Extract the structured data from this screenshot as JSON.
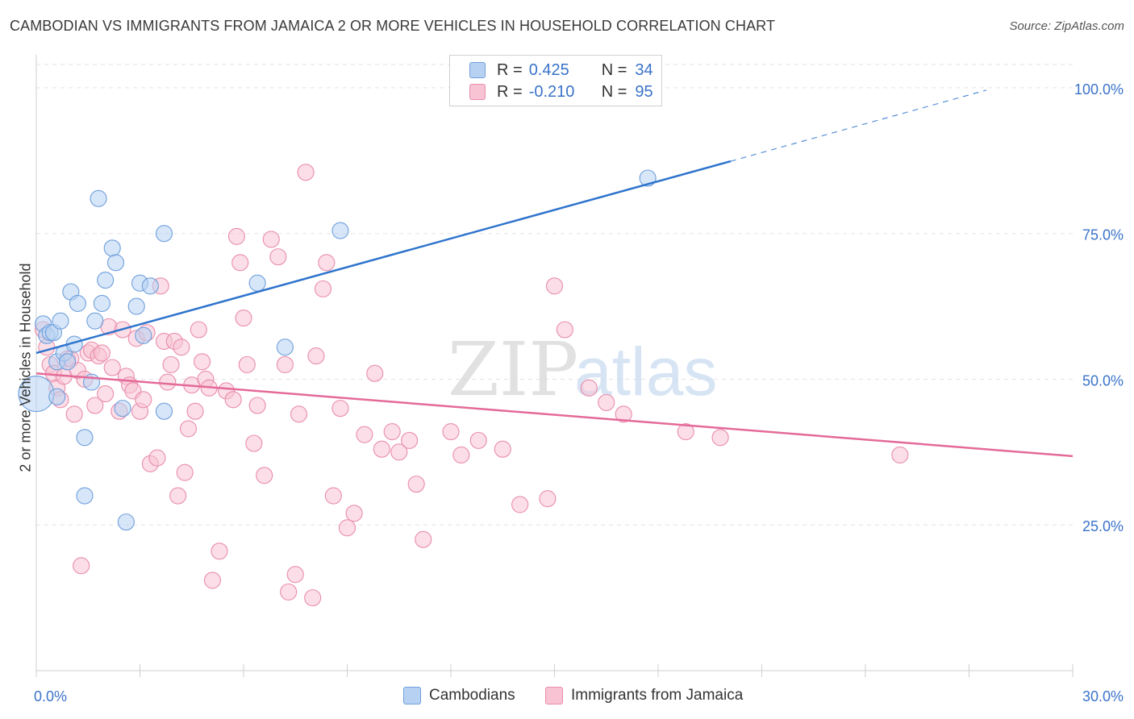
{
  "header": {
    "title": "CAMBODIAN VS IMMIGRANTS FROM JAMAICA 2 OR MORE VEHICLES IN HOUSEHOLD CORRELATION CHART",
    "source": "Source: ZipAtlas.com"
  },
  "legend": {
    "rows": [
      {
        "r_label": "R =",
        "r_value": "0.425",
        "n_label": "N =",
        "n_value": "34"
      },
      {
        "r_label": "R =",
        "r_value": "-0.210",
        "n_label": "N =",
        "n_value": "95"
      }
    ]
  },
  "bottom_legend": [
    "Cambodians",
    "Immigrants from Jamaica"
  ],
  "watermark": {
    "zip": "ZIP",
    "atlas": "atlas"
  },
  "colors": {
    "blue_fill": "#b7d1f2",
    "blue_stroke": "#6e9fdc",
    "blue_line": "#2e74cc",
    "pink_fill": "#f8c3d3",
    "pink_stroke": "#e98cab",
    "pink_line": "#e46a98",
    "axis_text": "#3a73c9",
    "grid": "#e3e3e3"
  },
  "chart_data": {
    "type": "scatter",
    "title": "CAMBODIAN VS IMMIGRANTS FROM JAMAICA 2 OR MORE VEHICLES IN HOUSEHOLD CORRELATION CHART",
    "xlabel": "",
    "ylabel": "2 or more Vehicles in Household",
    "xlim": [
      0,
      30
    ],
    "ylim": [
      0,
      104
    ],
    "x_tick_labels": [
      "0.0%",
      "30.0%"
    ],
    "y_ticks": [
      25,
      50,
      75,
      100
    ],
    "y_tick_labels": [
      "25.0%",
      "50.0%",
      "75.0%",
      "100.0%"
    ],
    "grid": true,
    "legend_position": "top-center",
    "series": [
      {
        "name": "Cambodians",
        "color": "#b7d1f2",
        "x": [
          0.0,
          0.2,
          0.3,
          0.4,
          0.5,
          0.6,
          0.6,
          0.7,
          0.8,
          0.9,
          1.0,
          1.1,
          1.2,
          1.4,
          1.4,
          1.6,
          1.7,
          1.8,
          1.9,
          2.0,
          2.2,
          2.3,
          2.5,
          2.6,
          2.9,
          3.0,
          3.1,
          3.3,
          3.7,
          3.7,
          6.4,
          7.2,
          8.8,
          17.7
        ],
        "y": [
          47.5,
          59.5,
          57.5,
          58,
          58,
          53,
          47,
          60,
          54.5,
          53,
          65,
          56,
          63,
          30,
          40,
          49.5,
          60,
          81,
          63,
          67,
          72.5,
          70,
          45,
          25.5,
          62.5,
          66.5,
          57.5,
          66,
          75,
          44.5,
          66.5,
          55.5,
          75.5,
          84.5
        ],
        "sizes": [
          22,
          10,
          10,
          10,
          10,
          10,
          10,
          10,
          10,
          10,
          10,
          10,
          10,
          10,
          10,
          10,
          10,
          10,
          10,
          10,
          10,
          10,
          10,
          10,
          10,
          10,
          10,
          10,
          10,
          10,
          10,
          10,
          10,
          10
        ],
        "trend": {
          "x0": 0,
          "y0": 54.5,
          "x1": 20.1,
          "y1": 87.4,
          "dash_to_x": 27.5,
          "dash_to_y": 99.6
        }
      },
      {
        "name": "Immigrants from Jamaica",
        "color": "#f8c3d3",
        "x": [
          0.2,
          0.3,
          0.4,
          0.5,
          0.6,
          0.7,
          0.8,
          0.9,
          1.0,
          1.1,
          1.2,
          1.3,
          1.4,
          1.5,
          1.6,
          1.7,
          1.8,
          1.9,
          2.0,
          2.1,
          2.2,
          2.4,
          2.5,
          2.6,
          2.7,
          2.8,
          2.9,
          3.0,
          3.1,
          3.2,
          3.3,
          3.5,
          3.6,
          3.7,
          3.8,
          3.9,
          4.0,
          4.1,
          4.2,
          4.3,
          4.4,
          4.5,
          4.6,
          4.7,
          4.8,
          4.9,
          5.0,
          5.1,
          5.3,
          5.5,
          5.7,
          5.8,
          5.9,
          6.0,
          6.1,
          6.3,
          6.4,
          6.6,
          6.8,
          7.0,
          7.2,
          7.3,
          7.5,
          7.6,
          7.8,
          8.0,
          8.1,
          8.3,
          8.4,
          8.6,
          8.8,
          9.0,
          9.2,
          9.5,
          9.8,
          10.0,
          10.3,
          10.5,
          10.8,
          11.0,
          11.2,
          12.0,
          12.3,
          12.8,
          13.5,
          14.0,
          14.8,
          15.0,
          15.3,
          16.0,
          16.5,
          17.0,
          18.8,
          19.8,
          25.0
        ],
        "y": [
          58.5,
          55.5,
          52.5,
          51,
          48.5,
          46.5,
          50.5,
          53.5,
          53.5,
          44,
          51.5,
          18,
          50,
          54.5,
          55,
          45.5,
          54,
          54.5,
          47.5,
          59,
          52,
          44.5,
          58.5,
          50.5,
          49,
          48,
          57,
          44.5,
          46.5,
          58,
          35.5,
          36.5,
          66,
          56.5,
          49.5,
          52.5,
          56.5,
          30,
          55.5,
          34,
          41.5,
          49,
          44.5,
          58.5,
          53,
          50,
          48.5,
          15.5,
          20.5,
          48,
          46.5,
          74.5,
          70,
          60.5,
          52.5,
          39,
          45.5,
          33.5,
          74,
          71,
          52.5,
          13.5,
          16.5,
          44,
          85.5,
          12.5,
          54,
          65.5,
          70,
          30,
          45,
          24.5,
          27,
          40.5,
          51,
          38,
          41,
          37.5,
          39.5,
          32,
          22.5,
          41,
          37,
          39.5,
          38,
          28.5,
          29.5,
          66,
          58.5,
          48.5,
          46,
          44,
          41,
          40,
          37
        ],
        "sizes": [
          10,
          10,
          10,
          10,
          10,
          10,
          10,
          10,
          10,
          10,
          10,
          10,
          10,
          10,
          10,
          10,
          10,
          10,
          10,
          10,
          10,
          10,
          10,
          10,
          10,
          10,
          10,
          10,
          10,
          10,
          10,
          10,
          10,
          10,
          10,
          10,
          10,
          10,
          10,
          10,
          10,
          10,
          10,
          10,
          10,
          10,
          10,
          10,
          10,
          10,
          10,
          10,
          10,
          10,
          10,
          10,
          10,
          10,
          10,
          10,
          10,
          10,
          10,
          10,
          10,
          10,
          10,
          10,
          10,
          10,
          10,
          10,
          10,
          10,
          10,
          10,
          10,
          10,
          10,
          10,
          10,
          10,
          10,
          10,
          10,
          10,
          10,
          10,
          10,
          10,
          10,
          10,
          10,
          10,
          10
        ],
        "trend": {
          "x0": 0,
          "y0": 51,
          "x1": 30,
          "y1": 36.8
        }
      }
    ]
  }
}
